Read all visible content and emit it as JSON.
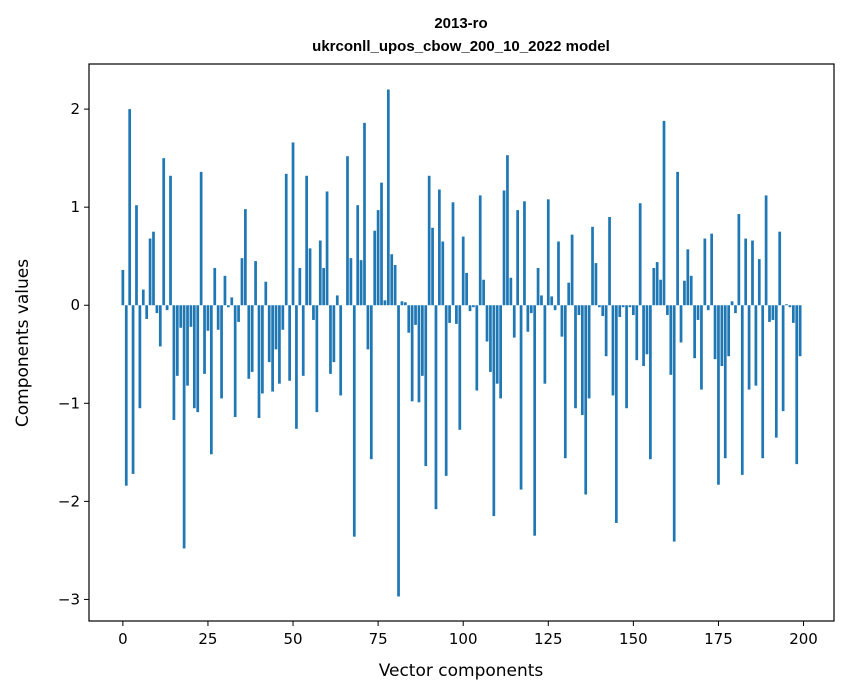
{
  "chart_data": {
    "type": "bar",
    "title": "2013-ro",
    "subtitle": "ukrconll_upos_cbow_200_10_2022 model",
    "xlabel": "Vector components",
    "ylabel": "Components values",
    "xlim": [
      -9.95,
      208.95
    ],
    "ylim": [
      -3.22,
      2.46
    ],
    "xticks": [
      0,
      25,
      50,
      75,
      100,
      125,
      150,
      175,
      200
    ],
    "yticks": [
      -3,
      -2,
      -1,
      0,
      1,
      2
    ],
    "bar_color": "#1f77b4",
    "grid": false,
    "x": [
      0,
      1,
      2,
      3,
      4,
      5,
      6,
      7,
      8,
      9,
      10,
      11,
      12,
      13,
      14,
      15,
      16,
      17,
      18,
      19,
      20,
      21,
      22,
      23,
      24,
      25,
      26,
      27,
      28,
      29,
      30,
      31,
      32,
      33,
      34,
      35,
      36,
      37,
      38,
      39,
      40,
      41,
      42,
      43,
      44,
      45,
      46,
      47,
      48,
      49,
      50,
      51,
      52,
      53,
      54,
      55,
      56,
      57,
      58,
      59,
      60,
      61,
      62,
      63,
      64,
      65,
      66,
      67,
      68,
      69,
      70,
      71,
      72,
      73,
      74,
      75,
      76,
      77,
      78,
      79,
      80,
      81,
      82,
      83,
      84,
      85,
      86,
      87,
      88,
      89,
      90,
      91,
      92,
      93,
      94,
      95,
      96,
      97,
      98,
      99,
      100,
      101,
      102,
      103,
      104,
      105,
      106,
      107,
      108,
      109,
      110,
      111,
      112,
      113,
      114,
      115,
      116,
      117,
      118,
      119,
      120,
      121,
      122,
      123,
      124,
      125,
      126,
      127,
      128,
      129,
      130,
      131,
      132,
      133,
      134,
      135,
      136,
      137,
      138,
      139,
      140,
      141,
      142,
      143,
      144,
      145,
      146,
      147,
      148,
      149,
      150,
      151,
      152,
      153,
      154,
      155,
      156,
      157,
      158,
      159,
      160,
      161,
      162,
      163,
      164,
      165,
      166,
      167,
      168,
      169,
      170,
      171,
      172,
      173,
      174,
      175,
      176,
      177,
      178,
      179,
      180,
      181,
      182,
      183,
      184,
      185,
      186,
      187,
      188,
      189,
      190,
      191,
      192,
      193,
      194,
      195,
      196,
      197,
      198,
      199
    ],
    "values": [
      0.36,
      -1.84,
      2.0,
      -1.72,
      1.02,
      -1.05,
      0.16,
      -0.14,
      0.68,
      0.75,
      -0.08,
      -0.42,
      1.5,
      -0.05,
      1.32,
      -1.17,
      -0.72,
      -0.23,
      -2.48,
      -0.82,
      -0.22,
      -1.05,
      -1.09,
      1.36,
      -0.7,
      -0.26,
      -1.52,
      0.38,
      -0.25,
      -0.95,
      0.3,
      -0.02,
      0.08,
      -1.14,
      -0.17,
      0.48,
      0.98,
      -0.75,
      -0.68,
      0.45,
      -1.15,
      -0.9,
      0.24,
      -0.58,
      -0.88,
      -0.45,
      -0.8,
      -0.25,
      1.34,
      -0.77,
      1.66,
      -1.26,
      0.38,
      -0.72,
      1.32,
      0.58,
      -0.15,
      -1.09,
      0.66,
      0.38,
      1.16,
      -0.7,
      -0.58,
      0.1,
      -0.92,
      0.0,
      1.52,
      0.48,
      -2.36,
      1.02,
      0.46,
      1.86,
      -0.45,
      -1.57,
      0.76,
      0.97,
      1.25,
      0.05,
      2.2,
      0.52,
      0.41,
      -2.97,
      0.04,
      0.03,
      -0.28,
      -0.98,
      -0.2,
      -0.99,
      -0.72,
      -1.64,
      1.32,
      0.79,
      -2.08,
      1.18,
      0.65,
      -1.74,
      -0.18,
      1.05,
      -0.19,
      -1.27,
      0.7,
      0.33,
      -0.06,
      -0.02,
      -0.87,
      1.12,
      0.26,
      -0.37,
      -0.68,
      -2.15,
      -0.8,
      -0.95,
      1.17,
      1.53,
      0.28,
      -0.33,
      0.97,
      -1.88,
      1.06,
      -0.27,
      -0.08,
      -2.35,
      0.38,
      0.1,
      -0.8,
      1.08,
      0.09,
      -0.05,
      0.65,
      -0.32,
      -1.56,
      0.23,
      0.72,
      -1.05,
      -0.1,
      -1.12,
      -1.93,
      -0.95,
      0.8,
      0.43,
      -0.02,
      -0.11,
      -0.52,
      0.9,
      -0.92,
      -2.22,
      -0.12,
      -0.02,
      -1.05,
      -0.02,
      -0.1,
      -0.56,
      1.04,
      -0.62,
      -0.5,
      -1.57,
      0.38,
      0.44,
      0.26,
      1.88,
      -0.1,
      -0.71,
      -2.41,
      1.36,
      -0.38,
      0.25,
      0.57,
      0.3,
      -0.54,
      -0.15,
      -0.86,
      0.68,
      -0.05,
      0.73,
      -0.55,
      -1.83,
      -0.62,
      -1.56,
      -0.52,
      0.04,
      -0.08,
      0.93,
      -1.73,
      0.68,
      -0.86,
      0.66,
      -0.82,
      0.47,
      -1.56,
      1.12,
      -0.17,
      -0.15,
      -1.35,
      0.75,
      -1.08,
      0.01,
      -0.02,
      -0.18,
      -1.62,
      -0.52
    ]
  }
}
